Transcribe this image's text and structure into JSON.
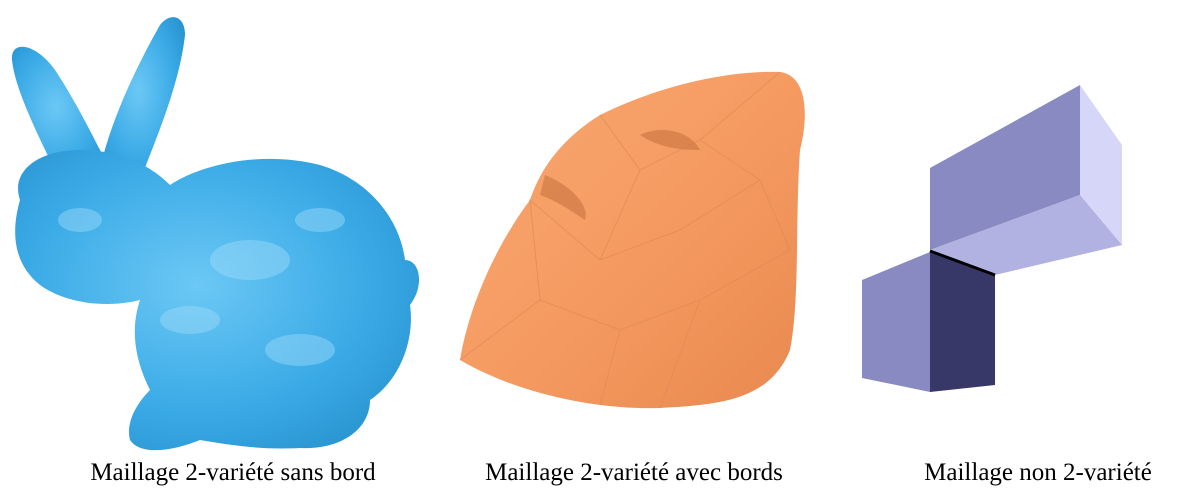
{
  "figure": {
    "panels": [
      {
        "caption": "Maillage 2-variété sans bord"
      },
      {
        "caption": "Maillage 2-variété avec bords"
      },
      {
        "caption": "Maillage non 2-variété"
      }
    ]
  }
}
